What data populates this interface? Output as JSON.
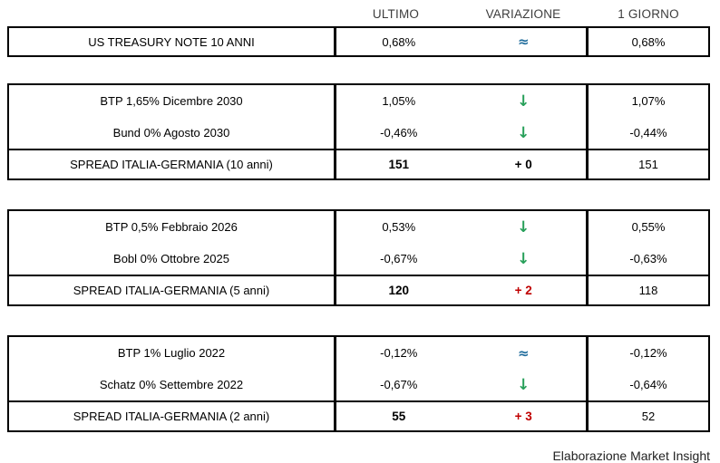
{
  "colors": {
    "green": "#28A05A",
    "blue": "#1F6C9C",
    "red": "#C00000",
    "border": "#000000"
  },
  "chart_data": {
    "type": "table",
    "column_headers": {
      "ultimo": "ULTIMO",
      "variazione": "VARIAZIONE",
      "giorno": "1 GIORNO"
    },
    "groups": [
      {
        "rows": [
          {
            "label": "US TREASURY NOTE 10 ANNI",
            "ultimo": "0,68%",
            "variation": {
              "glyph": "≈",
              "style": "flat"
            },
            "giorno": "0,68%",
            "spread": false
          }
        ]
      },
      {
        "rows": [
          {
            "label": "BTP 1,65% Dicembre 2030",
            "ultimo": "1,05%",
            "variation": {
              "glyph": "↓",
              "style": "down"
            },
            "giorno": "1,07%",
            "spread": false
          },
          {
            "label": "Bund 0% Agosto 2030",
            "ultimo": "-0,46%",
            "variation": {
              "glyph": "↓",
              "style": "down"
            },
            "giorno": "-0,44%",
            "spread": false
          },
          {
            "label": "SPREAD ITALIA-GERMANIA (10 anni)",
            "ultimo": "151",
            "variation": {
              "glyph": "+ 0",
              "style": "neutral"
            },
            "giorno": "151",
            "spread": true
          }
        ]
      },
      {
        "rows": [
          {
            "label": "BTP 0,5% Febbraio 2026",
            "ultimo": "0,53%",
            "variation": {
              "glyph": "↓",
              "style": "down"
            },
            "giorno": "0,55%",
            "spread": false
          },
          {
            "label": "Bobl 0% Ottobre 2025",
            "ultimo": "-0,67%",
            "variation": {
              "glyph": "↓",
              "style": "down"
            },
            "giorno": "-0,63%",
            "spread": false
          },
          {
            "label": "SPREAD ITALIA-GERMANIA (5 anni)",
            "ultimo": "120",
            "variation": {
              "glyph": "+ 2",
              "style": "up"
            },
            "giorno": "118",
            "spread": true
          }
        ]
      },
      {
        "rows": [
          {
            "label": "BTP 1% Luglio 2022",
            "ultimo": "-0,12%",
            "variation": {
              "glyph": "≈",
              "style": "flat"
            },
            "giorno": "-0,12%",
            "spread": false
          },
          {
            "label": "Schatz 0% Settembre 2022",
            "ultimo": "-0,67%",
            "variation": {
              "glyph": "↓",
              "style": "down"
            },
            "giorno": "-0,64%",
            "spread": false
          },
          {
            "label": "SPREAD ITALIA-GERMANIA (2 anni)",
            "ultimo": "55",
            "variation": {
              "glyph": "+ 3",
              "style": "up"
            },
            "giorno": "52",
            "spread": true
          }
        ]
      }
    ],
    "footer_note": "Elaborazione Market Insight"
  }
}
